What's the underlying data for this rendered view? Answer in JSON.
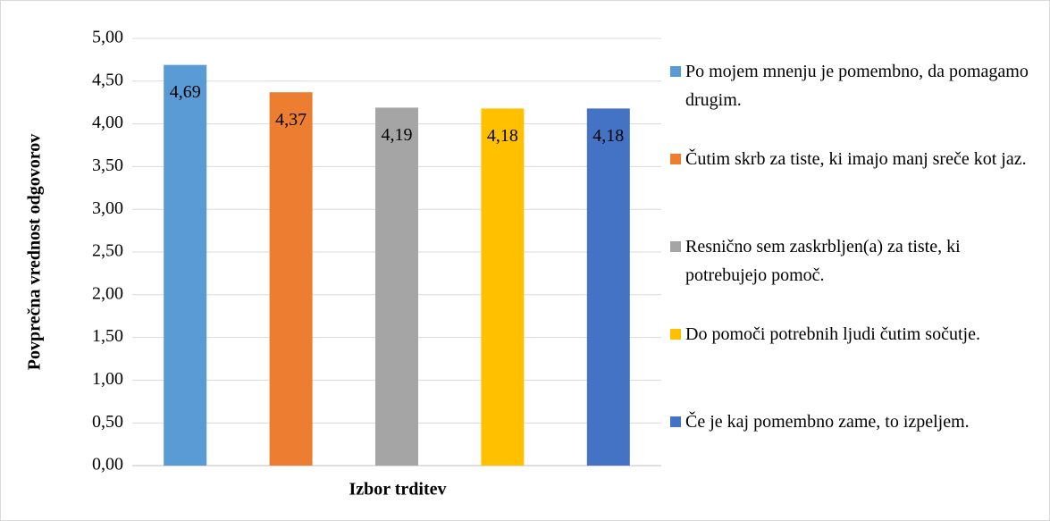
{
  "chart_data": {
    "type": "bar",
    "y_label": "Povprečna vrednost odgovorov",
    "x_label": "Izbor trditev",
    "categories": [
      null
    ],
    "series": [
      {
        "name": "Po mojem mnenju je pomembno, da pomagamo drugim.",
        "color": "#5b9bd5",
        "values": [
          4.69
        ],
        "value_labels": [
          "4,69"
        ]
      },
      {
        "name": "Čutim skrb za tiste, ki imajo manj sreče kot jaz.",
        "color": "#ed7d31",
        "values": [
          4.37
        ],
        "value_labels": [
          "4,37"
        ]
      },
      {
        "name": "Resnično sem zaskrbljen(a) za tiste, ki potrebujejo pomoč.",
        "color": "#a5a5a5",
        "values": [
          4.19
        ],
        "value_labels": [
          "4,19"
        ]
      },
      {
        "name": "Do pomoči potrebnih ljudi čutim sočutje.",
        "color": "#ffc000",
        "values": [
          4.18
        ],
        "value_labels": [
          "4,18"
        ]
      },
      {
        "name": "Če je kaj pomembno zame, to izpeljem.",
        "color": "#4472c4",
        "values": [
          4.18
        ],
        "value_labels": [
          "4,18"
        ]
      }
    ],
    "ylim": [
      0,
      5
    ],
    "yticks": [
      {
        "value": 0,
        "label": "0,00"
      },
      {
        "value": 0.5,
        "label": "0,50"
      },
      {
        "value": 1,
        "label": "1,00"
      },
      {
        "value": 1.5,
        "label": "1,50"
      },
      {
        "value": 2,
        "label": "2,00"
      },
      {
        "value": 2.5,
        "label": "2,50"
      },
      {
        "value": 3,
        "label": "3,00"
      },
      {
        "value": 3.5,
        "label": "3,50"
      },
      {
        "value": 4,
        "label": "4,00"
      },
      {
        "value": 4.5,
        "label": "4,50"
      },
      {
        "value": 5,
        "label": "5,00"
      }
    ],
    "grid": true,
    "legend": "right"
  }
}
